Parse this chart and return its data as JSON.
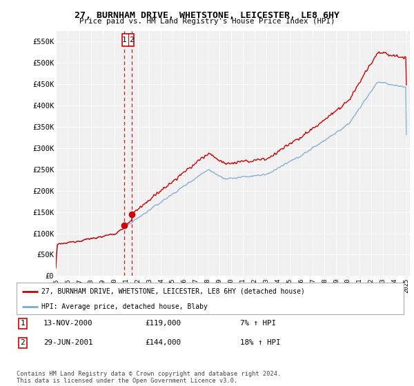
{
  "title": "27, BURNHAM DRIVE, WHETSTONE, LEICESTER, LE8 6HY",
  "subtitle": "Price paid vs. HM Land Registry's House Price Index (HPI)",
  "legend_label_red": "27, BURNHAM DRIVE, WHETSTONE, LEICESTER, LE8 6HY (detached house)",
  "legend_label_blue": "HPI: Average price, detached house, Blaby",
  "table_rows": [
    {
      "num": "1",
      "date": "13-NOV-2000",
      "price": "£119,000",
      "hpi": "7% ↑ HPI"
    },
    {
      "num": "2",
      "date": "29-JUN-2001",
      "price": "£144,000",
      "hpi": "18% ↑ HPI"
    }
  ],
  "footnote": "Contains HM Land Registry data © Crown copyright and database right 2024.\nThis data is licensed under the Open Government Licence v3.0.",
  "ylim": [
    0,
    575000
  ],
  "yticks": [
    0,
    50000,
    100000,
    150000,
    200000,
    250000,
    300000,
    350000,
    400000,
    450000,
    500000,
    550000
  ],
  "ytick_labels": [
    "£0",
    "£50K",
    "£100K",
    "£150K",
    "£200K",
    "£250K",
    "£300K",
    "£350K",
    "£400K",
    "£450K",
    "£500K",
    "£550K"
  ],
  "background_color": "#ffffff",
  "plot_bg_color": "#f0f0f0",
  "grid_color": "#ffffff",
  "red_color": "#cc0000",
  "blue_color": "#7aa8d2",
  "dashed_color": "#cc0000",
  "sale1_x": 2000.87,
  "sale1_y": 119000,
  "sale2_x": 2001.49,
  "sale2_y": 144000,
  "xmin": 1995,
  "xmax": 2025
}
